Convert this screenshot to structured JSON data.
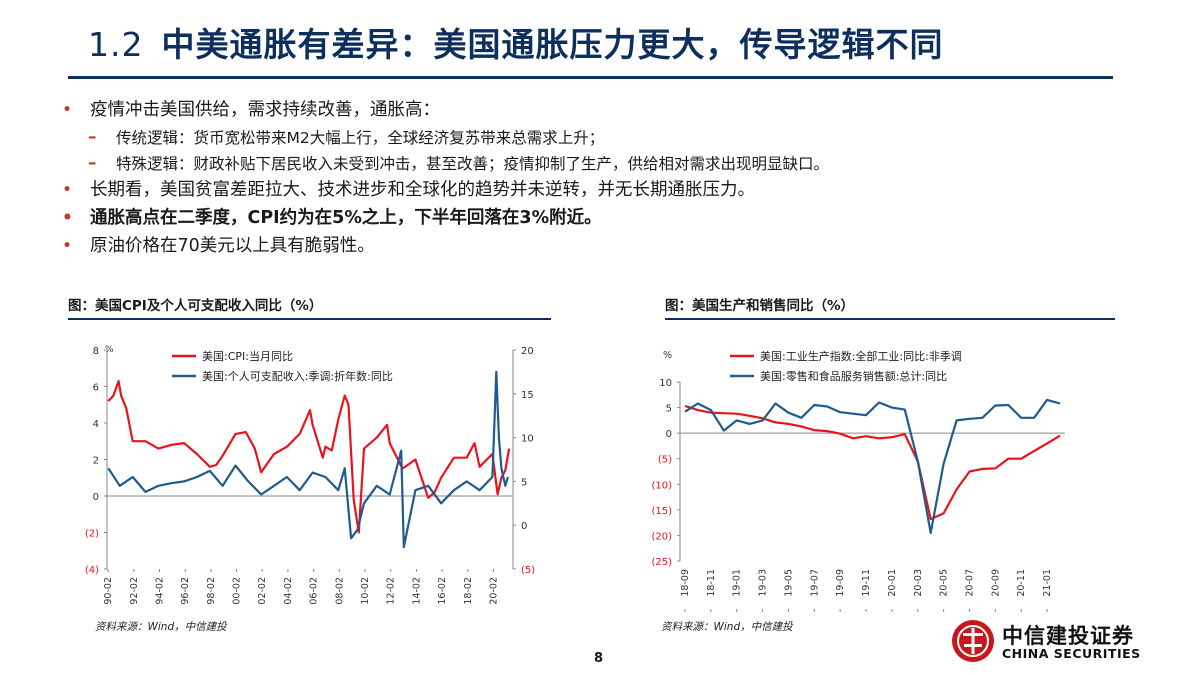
{
  "header": {
    "section_number": "1.2",
    "title": "中美通胀有差异：美国通胀压力更大，传导逻辑不同"
  },
  "bullets": [
    {
      "level": 1,
      "bold": false,
      "text": "疫情冲击美国供给，需求持续改善，通胀高："
    },
    {
      "level": 2,
      "bold": false,
      "text": "传统逻辑：货币宽松带来M2大幅上行，全球经济复苏带来总需求上升；"
    },
    {
      "level": 2,
      "bold": false,
      "text": "特殊逻辑：财政补贴下居民收入未受到冲击，甚至改善；疫情抑制了生产，供给相对需求出现明显缺口。"
    },
    {
      "level": 1,
      "bold": false,
      "text": "长期看，美国贫富差距拉大、技术进步和全球化的趋势并未逆转，并无长期通胀压力。"
    },
    {
      "level": 1,
      "bold": true,
      "text": "通胀高点在二季度，CPI约为在5%之上，下半年回落在3%附近。"
    },
    {
      "level": 1,
      "bold": false,
      "text": "原油价格在70美元以上具有脆弱性。"
    }
  ],
  "figures": {
    "left_title": "图：美国CPI及个人可支配收入同比（%）",
    "right_title": "图：美国生产和销售同比（%）",
    "left_source": "资料来源：Wind，中信建投",
    "right_source": "资料来源：Wind，中信建投"
  },
  "page_number": "8",
  "logo": {
    "cn": "中信建投证券",
    "en": "CHINA SECURITIES"
  },
  "colors": {
    "navy": "#0d2f5e",
    "red": "#e8141b",
    "blue": "#1f5b8e",
    "bullet": "#c0392b"
  },
  "chart_data": [
    {
      "type": "line",
      "title": "图：美国CPI及个人可支配收入同比（%）",
      "left_axis": {
        "ylim": [
          -4,
          8
        ],
        "ticks": [
          "8",
          "6",
          "4",
          "2",
          "0",
          "(2)",
          "(4)"
        ]
      },
      "right_axis": {
        "ylim": [
          -5,
          20
        ],
        "ticks": [
          "20",
          "15",
          "10",
          "5",
          "0",
          "(5)"
        ]
      },
      "x_ticks": [
        "90-02",
        "92-02",
        "94-02",
        "96-02",
        "98-02",
        "00-02",
        "02-02",
        "04-02",
        "06-02",
        "08-02",
        "10-02",
        "12-02",
        "14-02",
        "16-02",
        "18-02",
        "20-02"
      ],
      "series": [
        {
          "name": "美国:CPI:当月同比",
          "axis": "left",
          "color": "#e8141b",
          "x": [
            1990.1,
            1990.5,
            1990.9,
            1991.1,
            1991.5,
            1992,
            1993,
            1994,
            1995,
            1996,
            1997,
            1998,
            1998.5,
            1999,
            2000,
            2000.8,
            2001.5,
            2002,
            2003,
            2004,
            2005,
            2005.8,
            2006,
            2006.8,
            2007,
            2007.5,
            2008,
            2008.5,
            2008.8,
            2009.2,
            2009.6,
            2010,
            2011,
            2011.8,
            2012,
            2013,
            2014,
            2015,
            2015.5,
            2016,
            2017,
            2018,
            2018.6,
            2019,
            2020,
            2020.4,
            2020.7,
            2021,
            2021.3
          ],
          "values": [
            5.2,
            5.5,
            6.3,
            5.5,
            4.8,
            3.0,
            3.0,
            2.6,
            2.8,
            2.9,
            2.3,
            1.6,
            1.7,
            2.2,
            3.4,
            3.5,
            2.6,
            1.3,
            2.3,
            2.7,
            3.4,
            4.7,
            3.9,
            2.1,
            2.7,
            2.5,
            4.2,
            5.5,
            5.0,
            -0.2,
            -2.0,
            2.6,
            3.2,
            3.9,
            2.9,
            1.5,
            2.0,
            -0.1,
            0.2,
            1.0,
            2.1,
            2.1,
            2.9,
            1.6,
            2.3,
            0.1,
            1.0,
            1.4,
            2.6
          ]
        },
        {
          "name": "美国:个人可支配收入:季调:折年数:同比",
          "axis": "right",
          "color": "#1f5b8e",
          "x": [
            1990.1,
            1991,
            1992,
            1993,
            1994,
            1995,
            1996,
            1997,
            1998,
            1999,
            2000,
            2001,
            2002,
            2003,
            2004,
            2005,
            2006,
            2007,
            2008,
            2008.5,
            2009,
            2009.5,
            2010,
            2011,
            2012,
            2012.9,
            2013.1,
            2014,
            2015,
            2016,
            2017,
            2018,
            2019,
            2020,
            2020.3,
            2020.5,
            2020.7,
            2021,
            2021.2
          ],
          "values": [
            6.5,
            4.5,
            5.5,
            3.8,
            4.5,
            4.8,
            5.0,
            5.5,
            6.2,
            4.5,
            6.8,
            5.0,
            3.5,
            4.5,
            5.5,
            4.0,
            6.0,
            5.5,
            4.0,
            6.5,
            -1.5,
            -0.5,
            2.5,
            4.5,
            3.5,
            8.5,
            -2.5,
            4.0,
            4.5,
            2.5,
            4.0,
            5.0,
            4.0,
            5.5,
            17.5,
            10.0,
            6.5,
            4.5,
            5.5
          ]
        }
      ]
    },
    {
      "type": "line",
      "title": "图：美国生产和销售同比（%）",
      "y_unit": "%",
      "ylim": [
        -25,
        10
      ],
      "y_ticks": [
        "10",
        "5",
        "0",
        "(5)",
        "(10)",
        "(15)",
        "(20)",
        "(25)"
      ],
      "x_ticks": [
        "18-09",
        "18-11",
        "19-01",
        "19-03",
        "19-05",
        "19-07",
        "19-09",
        "19-11",
        "20-01",
        "20-03",
        "20-05",
        "20-07",
        "20-09",
        "20-11",
        "21-01"
      ],
      "series": [
        {
          "name": "美国:工业生产指数:全部工业:同比:非季调",
          "color": "#e8141b",
          "x": [
            "18-09",
            "18-10",
            "18-11",
            "18-12",
            "19-01",
            "19-02",
            "19-03",
            "19-04",
            "19-05",
            "19-06",
            "19-07",
            "19-08",
            "19-09",
            "19-10",
            "19-11",
            "19-12",
            "20-01",
            "20-02",
            "20-03",
            "20-04",
            "20-05",
            "20-06",
            "20-07",
            "20-08",
            "20-09",
            "20-10",
            "20-11",
            "20-12",
            "21-01",
            "21-02"
          ],
          "values": [
            5.3,
            4.5,
            4.0,
            3.9,
            3.8,
            3.4,
            2.9,
            2.1,
            1.8,
            1.3,
            0.6,
            0.4,
            -0.1,
            -1.0,
            -0.6,
            -1.0,
            -0.8,
            -0.2,
            -5.5,
            -16.8,
            -15.7,
            -11.0,
            -7.5,
            -7.0,
            -6.9,
            -5.0,
            -5.0,
            -3.5,
            -2.0,
            -0.5
          ]
        },
        {
          "name": "美国:零售和食品服务销售额:总计:同比",
          "color": "#1f5b8e",
          "x": [
            "18-09",
            "18-10",
            "18-11",
            "18-12",
            "19-01",
            "19-02",
            "19-03",
            "19-04",
            "19-05",
            "19-06",
            "19-07",
            "19-08",
            "19-09",
            "19-10",
            "19-11",
            "19-12",
            "20-01",
            "20-02",
            "20-03",
            "20-04",
            "20-05",
            "20-06",
            "20-07",
            "20-08",
            "20-09",
            "20-10",
            "20-11",
            "20-12",
            "21-01",
            "21-02"
          ],
          "values": [
            4.2,
            5.8,
            4.5,
            0.5,
            2.5,
            1.8,
            2.5,
            5.8,
            4.0,
            3.0,
            5.5,
            5.2,
            4.1,
            3.8,
            3.5,
            6.0,
            5.0,
            4.6,
            -5.5,
            -19.5,
            -6.0,
            2.5,
            2.8,
            3.0,
            5.4,
            5.5,
            3.0,
            3.0,
            6.5,
            5.8
          ]
        }
      ]
    }
  ]
}
